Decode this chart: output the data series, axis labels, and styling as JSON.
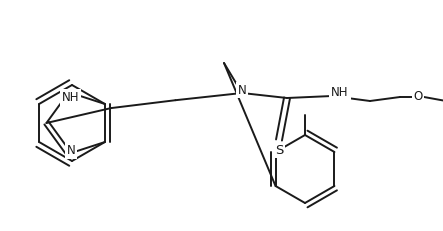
{
  "background_color": "#ffffff",
  "line_color": "#1a1a1a",
  "line_width": 1.4,
  "font_size": 8.5,
  "figsize": [
    4.43,
    2.31
  ],
  "dpi": 100,
  "xlim": [
    0,
    443
  ],
  "ylim": [
    0,
    231
  ]
}
